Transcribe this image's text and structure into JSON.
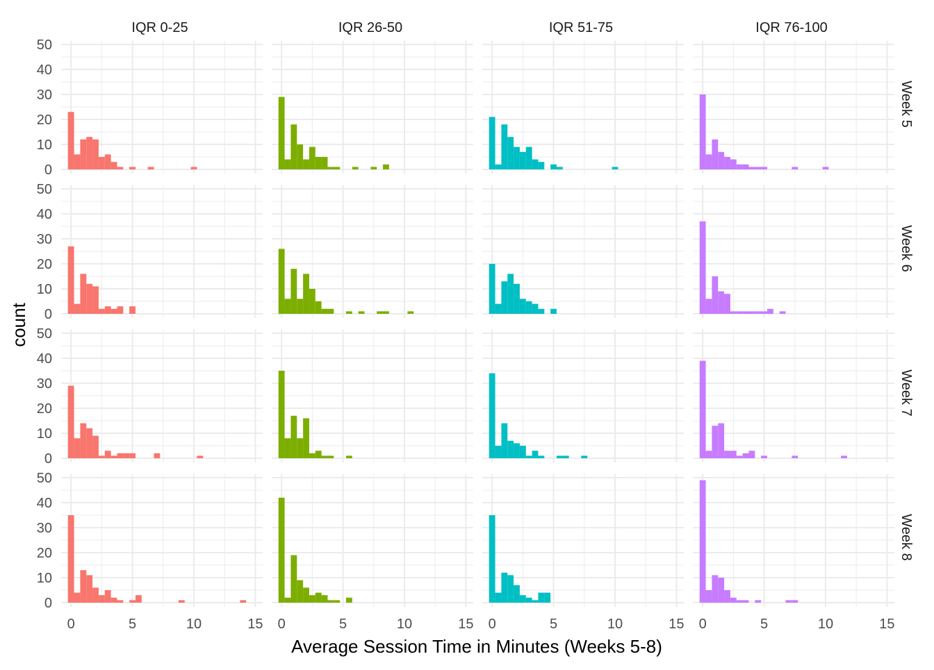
{
  "chart_data": {
    "type": "histogram-facet-grid",
    "xlabel": "Average Session Time in Minutes (Weeks 5-8)",
    "ylabel": "count",
    "xlim": [
      0,
      15
    ],
    "ylim": [
      0,
      50
    ],
    "x_ticks": [
      0,
      5,
      10,
      15
    ],
    "y_ticks": [
      0,
      10,
      20,
      30,
      40,
      50
    ],
    "bin_width": 0.5,
    "grid": true,
    "columns": [
      {
        "label": "IQR 0-25",
        "color": "#F8766D"
      },
      {
        "label": "IQR 26-50",
        "color": "#7CAE00"
      },
      {
        "label": "IQR 51-75",
        "color": "#00BFC4"
      },
      {
        "label": "IQR 76-100",
        "color": "#C77CFF"
      }
    ],
    "rows": [
      {
        "label": "Week 5"
      },
      {
        "label": "Week 6"
      },
      {
        "label": "Week 7"
      },
      {
        "label": "Week 8"
      }
    ],
    "panels": [
      [
        {
          "bin_starts": [
            -0.25,
            0.25,
            0.75,
            1.25,
            1.75,
            2.25,
            2.75,
            3.25,
            3.75,
            4.75,
            6.25,
            9.75
          ],
          "counts": [
            23,
            6,
            12,
            13,
            12,
            5,
            6,
            3,
            1,
            1,
            1,
            1
          ]
        },
        {
          "bin_starts": [
            -0.25,
            0.25,
            0.75,
            1.25,
            1.75,
            2.25,
            2.75,
            3.25,
            3.75,
            4.75
          ],
          "counts": [
            27,
            4,
            16,
            12,
            11,
            2,
            3,
            2,
            3,
            3
          ]
        },
        {
          "bin_starts": [
            -0.25,
            0.25,
            0.75,
            1.25,
            1.75,
            2.25,
            2.75,
            3.25,
            3.75,
            4.25,
            4.75,
            6.75,
            10.25
          ],
          "counts": [
            29,
            8,
            14,
            12,
            9,
            1,
            3,
            1,
            2,
            2,
            2,
            2,
            1
          ]
        },
        {
          "bin_starts": [
            -0.25,
            0.25,
            0.75,
            1.25,
            1.75,
            2.25,
            2.75,
            3.25,
            3.75,
            4.75,
            5.25,
            8.75,
            13.75
          ],
          "counts": [
            35,
            4,
            13,
            11,
            6,
            3,
            5,
            2,
            1,
            1,
            3,
            1,
            1
          ]
        }
      ],
      [
        {
          "bin_starts": [
            -0.25,
            0.25,
            0.75,
            1.25,
            1.75,
            2.25,
            2.75,
            3.25,
            3.75,
            4.25,
            5.75,
            7.25,
            8.25
          ],
          "counts": [
            29,
            4,
            18,
            10,
            4,
            9,
            5,
            5,
            1,
            1,
            1,
            1,
            2
          ]
        },
        {
          "bin_starts": [
            -0.25,
            0.25,
            0.75,
            1.25,
            1.75,
            2.25,
            2.75,
            3.25,
            3.75,
            5.25,
            6.25,
            7.75,
            8.25,
            10.25
          ],
          "counts": [
            26,
            6,
            18,
            6,
            16,
            10,
            5,
            2,
            2,
            1,
            1,
            1,
            1,
            1
          ]
        },
        {
          "bin_starts": [
            -0.25,
            0.25,
            0.75,
            1.25,
            1.75,
            2.25,
            2.75,
            3.25,
            3.75,
            5.25
          ],
          "counts": [
            35,
            8,
            17,
            8,
            16,
            2,
            3,
            1,
            1,
            1
          ]
        },
        {
          "bin_starts": [
            -0.25,
            0.25,
            0.75,
            1.25,
            1.75,
            2.25,
            2.75,
            3.25,
            3.75,
            4.25,
            5.25
          ],
          "counts": [
            42,
            2,
            19,
            9,
            6,
            3,
            4,
            3,
            1,
            1,
            2
          ]
        }
      ],
      [
        {
          "bin_starts": [
            -0.25,
            0.25,
            0.75,
            1.25,
            1.75,
            2.25,
            2.75,
            3.25,
            3.75,
            4.75,
            5.25,
            9.75
          ],
          "counts": [
            21,
            2,
            18,
            13,
            9,
            7,
            9,
            4,
            3,
            2,
            1,
            1
          ]
        },
        {
          "bin_starts": [
            -0.25,
            0.25,
            0.75,
            1.25,
            1.75,
            2.25,
            2.75,
            3.25,
            3.75,
            4.75
          ],
          "counts": [
            20,
            4,
            13,
            16,
            12,
            6,
            5,
            4,
            2,
            2
          ]
        },
        {
          "bin_starts": [
            -0.25,
            0.25,
            0.75,
            1.25,
            1.75,
            2.25,
            2.75,
            3.25,
            3.75,
            5.25,
            5.75,
            7.25
          ],
          "counts": [
            34,
            5,
            14,
            7,
            6,
            5,
            1,
            3,
            1,
            1,
            1,
            1
          ]
        },
        {
          "bin_starts": [
            -0.25,
            0.25,
            0.75,
            1.25,
            1.75,
            2.25,
            2.75,
            3.25,
            3.75,
            4.25
          ],
          "counts": [
            35,
            4,
            12,
            11,
            7,
            3,
            2,
            1,
            4,
            4
          ]
        }
      ],
      [
        {
          "bin_starts": [
            -0.25,
            0.25,
            0.75,
            1.25,
            1.75,
            2.25,
            2.75,
            3.25,
            3.75,
            4.25,
            4.75,
            7.25,
            9.75
          ],
          "counts": [
            30,
            6,
            12,
            7,
            5,
            4,
            2,
            2,
            1,
            1,
            1,
            1,
            1
          ]
        },
        {
          "bin_starts": [
            -0.25,
            0.25,
            0.75,
            1.25,
            1.75,
            2.25,
            2.75,
            3.25,
            3.75,
            4.25,
            4.75,
            5.25,
            6.25
          ],
          "counts": [
            37,
            6,
            15,
            9,
            8,
            1,
            1,
            1,
            1,
            1,
            1,
            2,
            1
          ]
        },
        {
          "bin_starts": [
            -0.25,
            0.25,
            0.75,
            1.25,
            1.75,
            2.25,
            2.75,
            3.25,
            3.75,
            4.75,
            7.25,
            11.25
          ],
          "counts": [
            39,
            3,
            13,
            14,
            3,
            3,
            1,
            2,
            3,
            1,
            1,
            1
          ]
        },
        {
          "bin_starts": [
            -0.25,
            0.25,
            0.75,
            1.25,
            1.75,
            2.25,
            2.75,
            3.25,
            4.25,
            6.75,
            7.25
          ],
          "counts": [
            49,
            5,
            11,
            10,
            5,
            2,
            1,
            1,
            1,
            1,
            1
          ]
        }
      ]
    ]
  }
}
